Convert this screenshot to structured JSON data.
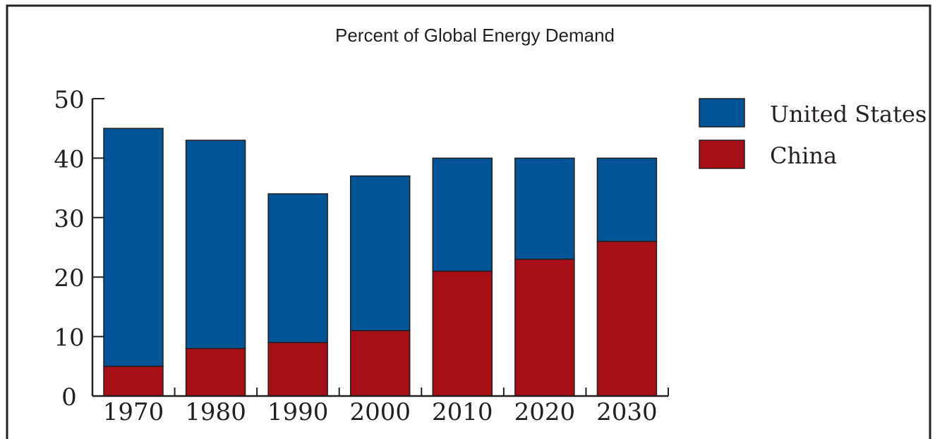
{
  "chart_data": {
    "type": "bar",
    "stacked": true,
    "title": "Percent of Global Energy Demand",
    "xlabel": "",
    "ylabel": "",
    "categories": [
      "1970",
      "1980",
      "1990",
      "2000",
      "2010",
      "2020",
      "2030"
    ],
    "series": [
      {
        "name": "China",
        "color": "#a50f15",
        "values": [
          5,
          8,
          9,
          11,
          21,
          23,
          26
        ]
      },
      {
        "name": "United States",
        "color": "#005596",
        "values": [
          40,
          35,
          25,
          26,
          19,
          17,
          14
        ]
      }
    ],
    "ylim": [
      0,
      50
    ],
    "yticks": [
      "0",
      "10",
      "20",
      "30",
      "40",
      "50"
    ],
    "grid": false,
    "legend": {
      "position": "right",
      "entries": [
        {
          "label": "United States",
          "color": "#005596"
        },
        {
          "label": "China",
          "color": "#a50f15"
        }
      ]
    }
  }
}
